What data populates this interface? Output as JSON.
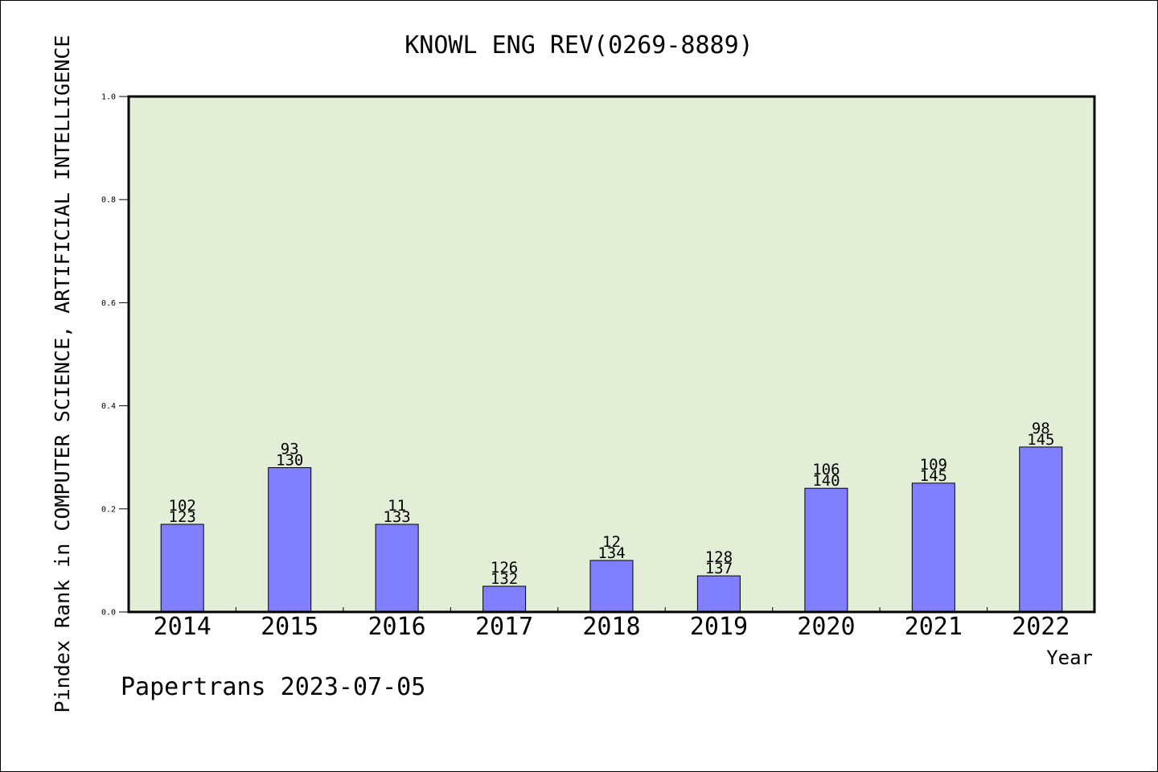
{
  "chart_data": {
    "type": "bar",
    "title": "KNOWL ENG REV(0269-8889)",
    "xlabel": "Year",
    "ylabel": "Pindex Rank in COMPUTER SCIENCE, ARTIFICIAL INTELLIGENCE",
    "ylim": [
      0,
      1.0
    ],
    "yticks": [
      "0.0",
      "0.2",
      "0.4",
      "0.6",
      "0.8",
      "1.0"
    ],
    "categories": [
      "2014",
      "2015",
      "2016",
      "2017",
      "2018",
      "2019",
      "2020",
      "2021",
      "2022"
    ],
    "values": [
      0.17,
      0.28,
      0.17,
      0.05,
      0.1,
      0.07,
      0.24,
      0.25,
      0.32
    ],
    "labels_top": [
      "102",
      "93",
      "11",
      "126",
      "12",
      "128",
      "106",
      "109",
      "98"
    ],
    "labels_bottom": [
      "123",
      "130",
      "133",
      "132",
      "134",
      "137",
      "140",
      "145",
      "145"
    ],
    "grid": false,
    "colors": {
      "plot_bg": "#e2efd6",
      "bar_fill": "#8080ff",
      "bar_stroke": "#000000"
    }
  },
  "footer": "Papertrans 2023-07-05"
}
